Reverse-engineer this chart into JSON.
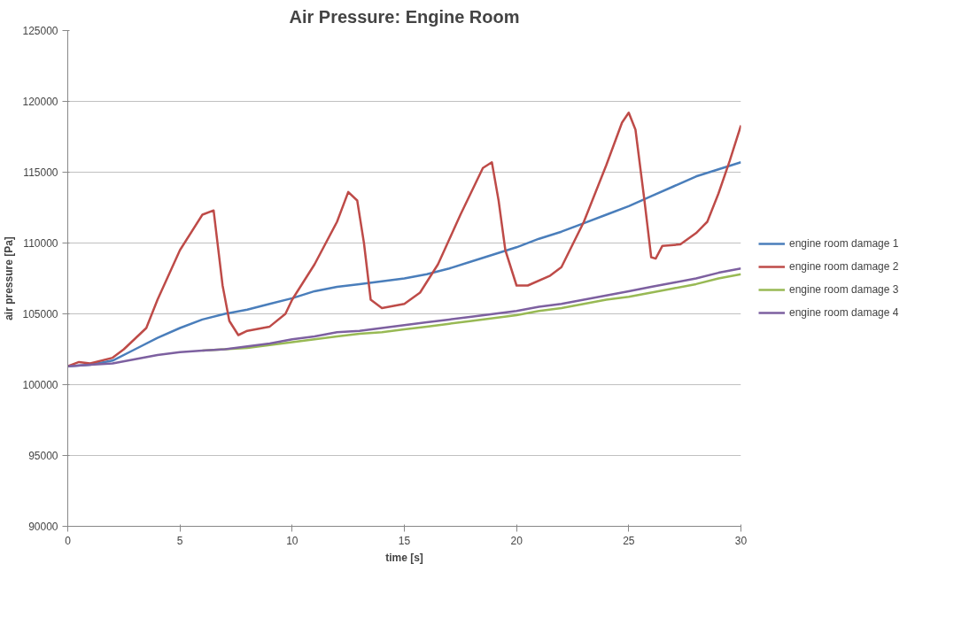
{
  "chart_data": {
    "type": "line",
    "title": "Air Pressure: Engine Room",
    "xlabel": "time [s]",
    "ylabel": "air pressure [Pa]",
    "xlim": [
      0,
      30
    ],
    "xticks": [
      0,
      5,
      10,
      15,
      20,
      25,
      30
    ],
    "ylim": [
      90000,
      125000
    ],
    "yticks": [
      90000,
      95000,
      100000,
      105000,
      110000,
      115000,
      120000,
      125000
    ],
    "grid": "y",
    "legend": "right",
    "marker": "none",
    "line_style": "solid",
    "series": [
      {
        "name": "engine room damage 1",
        "color": "#4a7ebb",
        "x": [
          0,
          1,
          2,
          3,
          4,
          5,
          6,
          7,
          8,
          9,
          10,
          11,
          12,
          13,
          14,
          15,
          16,
          17,
          18,
          19,
          20,
          21,
          22,
          23,
          24,
          25,
          26,
          27,
          28,
          29,
          30
        ],
        "values": [
          101300,
          101400,
          101700,
          102500,
          103300,
          104000,
          104600,
          105000,
          105300,
          105700,
          106100,
          106600,
          106900,
          107100,
          107300,
          107500,
          107800,
          108200,
          108700,
          109200,
          109700,
          110300,
          110800,
          111400,
          112000,
          112600,
          113300,
          114000,
          114700,
          115200,
          115700
        ]
      },
      {
        "name": "engine room damage 2",
        "color": "#be4b48",
        "x": [
          0,
          0.5,
          1,
          2,
          2.5,
          3.5,
          4,
          5,
          6,
          6.5,
          6.9,
          7.2,
          7.6,
          8,
          9,
          9.7,
          10,
          11,
          12,
          12.5,
          12.9,
          13.2,
          13.5,
          14,
          15,
          15.7,
          16.5,
          17.5,
          18.5,
          18.9,
          19.2,
          19.5,
          20,
          20.5,
          21.5,
          22,
          23,
          24,
          24.7,
          25,
          25.3,
          25.7,
          26,
          26.2,
          26.5,
          27.3,
          28,
          28.5,
          29,
          29.5,
          30
        ],
        "values": [
          101300,
          101600,
          101500,
          101900,
          102500,
          104000,
          106000,
          109500,
          112000,
          112300,
          107000,
          104500,
          103500,
          103800,
          104100,
          105000,
          106000,
          108500,
          111500,
          113600,
          113000,
          110000,
          106000,
          105400,
          105700,
          106500,
          108500,
          112000,
          115300,
          115700,
          113000,
          109500,
          107000,
          107000,
          107700,
          108300,
          111500,
          115500,
          118500,
          119200,
          118000,
          113000,
          109000,
          108900,
          109800,
          109900,
          110700,
          111500,
          113500,
          115800,
          118300
        ]
      },
      {
        "name": "engine room damage 3",
        "color": "#98b954",
        "x": [
          6,
          7,
          8,
          9,
          10,
          11,
          12,
          13,
          14,
          15,
          16,
          17,
          18,
          19,
          20,
          21,
          22,
          23,
          24,
          25,
          26,
          27,
          28,
          29,
          30
        ],
        "values": [
          102400,
          102500,
          102600,
          102800,
          103000,
          103200,
          103400,
          103600,
          103700,
          103900,
          104100,
          104300,
          104500,
          104700,
          104900,
          105200,
          105400,
          105700,
          106000,
          106200,
          106500,
          106800,
          107100,
          107500,
          107800
        ]
      },
      {
        "name": "engine room damage 4",
        "color": "#7d60a0",
        "x": [
          0,
          1,
          2,
          3,
          4,
          5,
          6,
          7,
          8,
          9,
          10,
          11,
          12,
          13,
          14,
          15,
          16,
          17,
          18,
          19,
          20,
          21,
          22,
          23,
          24,
          25,
          26,
          27,
          28,
          29,
          30
        ],
        "values": [
          101300,
          101400,
          101500,
          101800,
          102100,
          102300,
          102400,
          102500,
          102700,
          102900,
          103200,
          103400,
          103700,
          103800,
          104000,
          104200,
          104400,
          104600,
          104800,
          105000,
          105200,
          105500,
          105700,
          106000,
          106300,
          106600,
          106900,
          107200,
          107500,
          107900,
          108200
        ]
      }
    ]
  }
}
